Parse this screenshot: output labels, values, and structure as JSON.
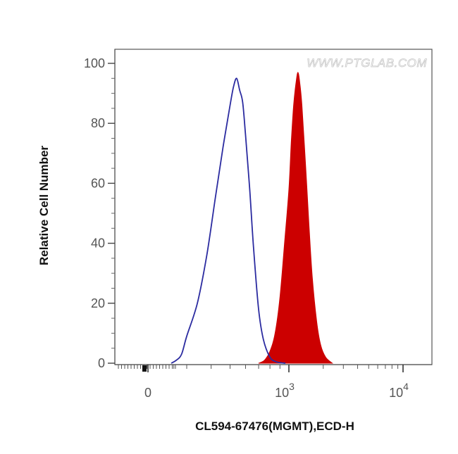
{
  "chart_data": {
    "type": "area",
    "title": "",
    "xlabel": "CL594-67476(MGMT),ECD-H",
    "ylabel": "Relative Cell Number",
    "watermark": "WWW.PTGLAB.COM",
    "xscale": "biexponential",
    "ylim": [
      0,
      100
    ],
    "yticks": [
      0,
      20,
      40,
      60,
      80,
      100
    ],
    "xticks": [
      {
        "value": 0,
        "base": "0",
        "exponent": ""
      },
      {
        "value": 1000,
        "base": "10",
        "exponent": "3"
      },
      {
        "value": 10000,
        "base": "10",
        "exponent": "4"
      }
    ],
    "grid": false,
    "series": [
      {
        "role": "control",
        "style": "outline",
        "color": "#2b2ba0",
        "x": [
          180,
          220,
          260,
          300,
          340,
          380,
          420,
          460,
          500,
          520,
          540,
          560,
          580,
          600,
          630,
          660,
          700,
          740,
          800,
          860,
          920,
          960
        ],
        "y": [
          0,
          1,
          3,
          9,
          20,
          36,
          55,
          72,
          86,
          92,
          95,
          91,
          87,
          76,
          58,
          38,
          18,
          8,
          2,
          0.5,
          0.1,
          0
        ]
      },
      {
        "role": "sample",
        "style": "filled",
        "color": "#cc0000",
        "x": [
          700,
          750,
          800,
          850,
          900,
          950,
          1000,
          1050,
          1100,
          1150,
          1200,
          1250,
          1300,
          1400,
          1500,
          1600,
          1750,
          1900,
          2100,
          2400
        ],
        "y": [
          0,
          1,
          4,
          10,
          22,
          40,
          58,
          74,
          86,
          93,
          97,
          93,
          86,
          66,
          46,
          29,
          14,
          6,
          2,
          0
        ]
      }
    ]
  }
}
